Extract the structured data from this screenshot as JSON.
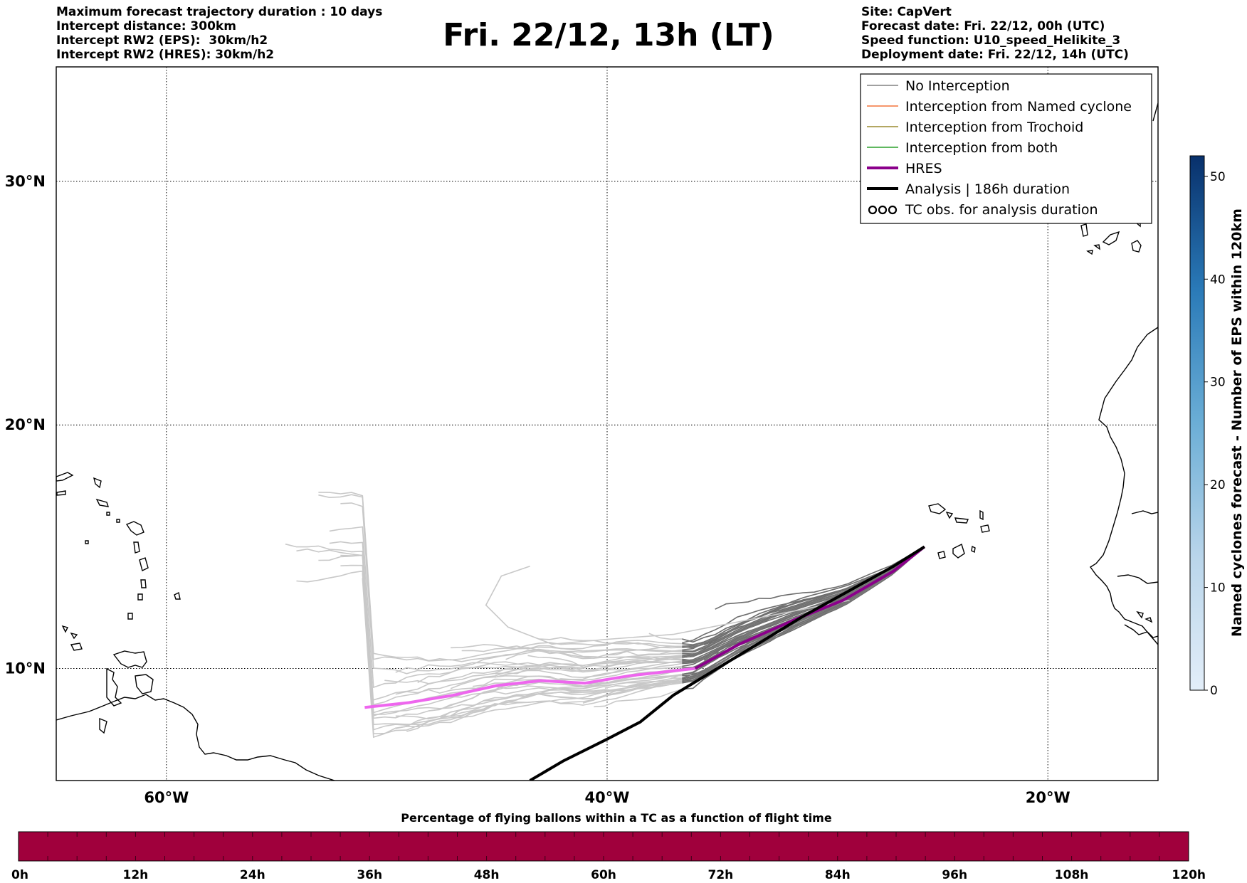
{
  "header": {
    "title": "Fri. 22/12, 13h (LT)",
    "left_lines": [
      "Maximum forecast trajectory duration : 10 days",
      "Intercept distance: 300km",
      "Intercept RW2 (EPS):  30km/h2",
      "Intercept RW2 (HRES): 30km/h2"
    ],
    "right_lines": [
      "Site: CapVert",
      "Forecast date: Fri. 22/12, 00h (UTC)",
      "Speed function: U10_speed_Helikite_3",
      "Deployment date: Fri. 22/12, 14h (UTC)"
    ]
  },
  "map": {
    "lon_range": [
      -65,
      -15
    ],
    "lat_range": [
      5.4,
      34.7
    ],
    "lat_ticks": [
      {
        "lat": 10,
        "label": "10°N"
      },
      {
        "lat": 20,
        "label": "20°N"
      },
      {
        "lat": 30,
        "label": "30°N"
      }
    ],
    "lon_ticks": [
      {
        "lon": -60,
        "label": "60°W"
      },
      {
        "lon": -40,
        "label": "40°W"
      },
      {
        "lon": -20,
        "label": "20°W"
      }
    ],
    "grid": true
  },
  "legend": {
    "items": [
      {
        "label": "No Interception",
        "color": "#808080",
        "style": "thin"
      },
      {
        "label": "Interception from Named cyclone",
        "color": "#f4743b",
        "style": "thin"
      },
      {
        "label": "Interception from Trochoid",
        "color": "#9a8a2e",
        "style": "thin"
      },
      {
        "label": "Interception from both",
        "color": "#2ca02c",
        "style": "thin"
      },
      {
        "label": "HRES",
        "color": "#8b008b",
        "style": "thick"
      },
      {
        "label": "Analysis | 186h duration",
        "color": "#000000",
        "style": "thick"
      },
      {
        "label": "TC obs. for analysis duration",
        "color": "#000000",
        "style": "symbol"
      }
    ]
  },
  "colorbar_right": {
    "label": "Named cyclones forecast - Number of EPS within 120km",
    "range": [
      0,
      52
    ],
    "ticks": [
      0,
      10,
      20,
      30,
      40,
      50
    ],
    "color_low": "#e3eef9",
    "color_high": "#08306b"
  },
  "colorbar_bottom": {
    "title": "Percentage of flying ballons within a TC as a function of flight time",
    "color": "#a0003c",
    "tick_labels": [
      "0h",
      "12h",
      "24h",
      "36h",
      "48h",
      "60h",
      "72h",
      "84h",
      "96h",
      "108h",
      "120h"
    ]
  },
  "trajectories": {
    "analysis": [
      [
        -43.5,
        5.4
      ],
      [
        -42,
        6.2
      ],
      [
        -40,
        7.1
      ],
      [
        -38.5,
        7.8
      ],
      [
        -37,
        8.9
      ],
      [
        -35,
        10
      ],
      [
        -33,
        11.1
      ],
      [
        -31,
        12.2
      ],
      [
        -29,
        13.2
      ],
      [
        -27,
        14.2
      ],
      [
        -25.6,
        15
      ]
    ],
    "hres": [
      [
        -51,
        8.4
      ],
      [
        -49,
        8.6
      ],
      [
        -47,
        8.9
      ],
      [
        -45,
        9.3
      ],
      [
        -43,
        9.5
      ],
      [
        -41,
        9.4
      ],
      [
        -39,
        9.7
      ],
      [
        -36,
        10
      ],
      [
        -34,
        11
      ],
      [
        -31.5,
        12
      ],
      [
        -29.3,
        12.8
      ],
      [
        -27,
        14
      ],
      [
        -25.6,
        15
      ]
    ]
  }
}
